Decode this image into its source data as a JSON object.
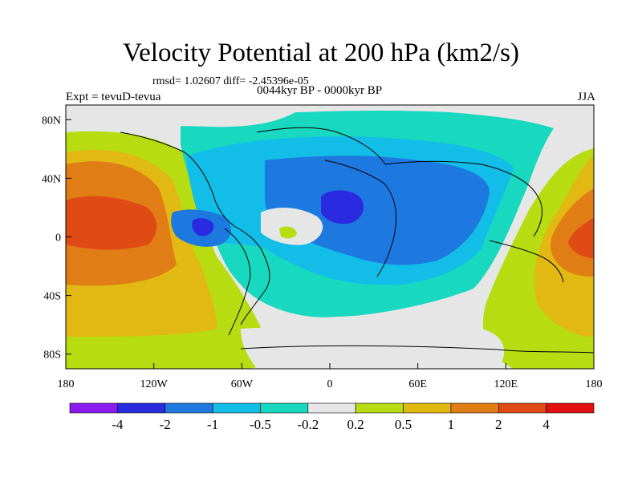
{
  "figure": {
    "title": "Velocity Potential at 200 hPa (km2/s)",
    "stats": "rmsd= 1.02607 diff= -2.45396e-05",
    "experiment": "Expt = tevuD-tevua",
    "period": "0044kyr BP - 0000kyr BP",
    "season": "JJA"
  },
  "chart_data": {
    "type": "heatmap",
    "title": "Velocity Potential at 200 hPa (km2/s)",
    "xlabel": "",
    "ylabel": "",
    "xlim": [
      -180,
      180
    ],
    "ylim": [
      -90,
      90
    ],
    "x_ticks": [
      {
        "value": -180,
        "label": "180"
      },
      {
        "value": -120,
        "label": "120W"
      },
      {
        "value": -60,
        "label": "60W"
      },
      {
        "value": 0,
        "label": "0"
      },
      {
        "value": 60,
        "label": "60E"
      },
      {
        "value": 120,
        "label": "120E"
      },
      {
        "value": 180,
        "label": "180"
      }
    ],
    "y_ticks": [
      {
        "value": 80,
        "label": "80N"
      },
      {
        "value": 40,
        "label": "40N"
      },
      {
        "value": 0,
        "label": "0"
      },
      {
        "value": -40,
        "label": "40S"
      },
      {
        "value": -80,
        "label": "80S"
      }
    ],
    "contour_levels": [
      "-4",
      "-2",
      "-1",
      "-0.5",
      "-0.2",
      "0.2",
      "0.5",
      "1",
      "2",
      "4"
    ],
    "colorbar_colors": [
      "#8a1aee",
      "#2a2ae0",
      "#1d78e0",
      "#12bde8",
      "#18d8c0",
      "#e6e6e6",
      "#b7dc12",
      "#e2b812",
      "#e07d14",
      "#e04a14",
      "#e01010"
    ],
    "regions": [
      {
        "name": "central-pacific-positive-core",
        "lon": -165,
        "lat": 8,
        "level": "2"
      },
      {
        "name": "west-pacific-positive-core",
        "lon": 165,
        "lat": 2,
        "level": "2"
      },
      {
        "name": "north-africa-negative-core",
        "lon": 10,
        "lat": 25,
        "level": "-2"
      },
      {
        "name": "central-america-negative-core",
        "lon": -80,
        "lat": 5,
        "level": "-2"
      },
      {
        "name": "atlantic-positive-spot",
        "lon": -30,
        "lat": 2,
        "level": "0.5"
      }
    ]
  }
}
